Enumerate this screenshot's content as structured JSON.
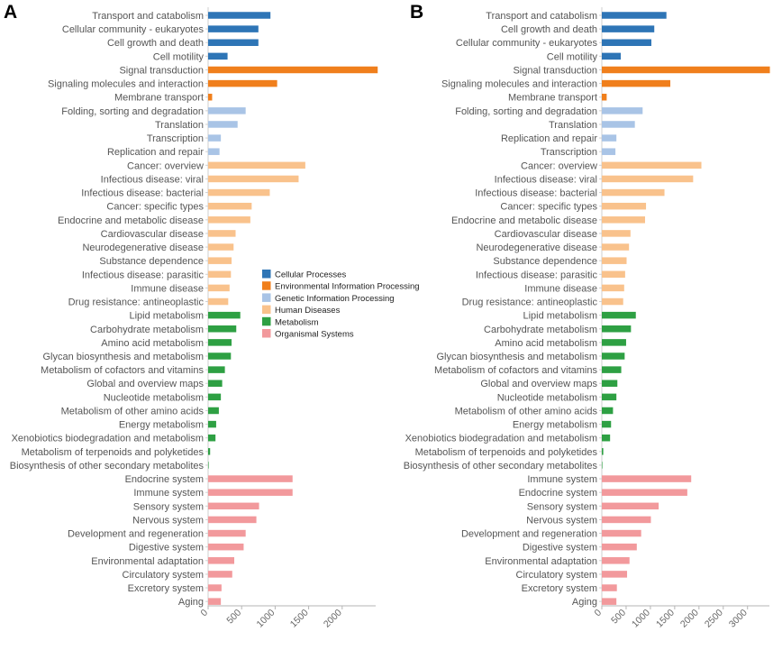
{
  "chart_data": [
    {
      "type": "bar",
      "orientation": "horizontal",
      "panel_label": "A",
      "xlim": [
        0,
        2500
      ],
      "x_ticks": [
        0,
        500,
        1000,
        1500,
        2000
      ],
      "categories": [
        "Transport and catabolism",
        "Cellular community - eukaryotes",
        "Cell growth and death",
        "Cell motility",
        "Signal transduction",
        "Signaling molecules and interaction",
        "Membrane transport",
        "Folding, sorting and degradation",
        "Translation",
        "Transcription",
        "Replication and repair",
        "Cancer: overview",
        "Infectious disease: viral",
        "Infectious disease: bacterial",
        "Cancer: specific types",
        "Endocrine and metabolic disease",
        "Cardiovascular disease",
        "Neurodegenerative disease",
        "Substance dependence",
        "Infectious disease: parasitic",
        "Immune disease",
        "Drug resistance: antineoplastic",
        "Lipid metabolism",
        "Carbohydrate metabolism",
        "Amino acid metabolism",
        "Glycan biosynthesis and metabolism",
        "Metabolism of cofactors and vitamins",
        "Global and overview maps",
        "Nucleotide metabolism",
        "Metabolism of other amino acids",
        "Energy metabolism",
        "Xenobiotics biodegradation and metabolism",
        "Metabolism of terpenoids and polyketides",
        "Biosynthesis of other secondary metabolites",
        "Endocrine system",
        "Immune system",
        "Sensory system",
        "Nervous system",
        "Development and regeneration",
        "Digestive system",
        "Environmental adaptation",
        "Circulatory system",
        "Excretory system",
        "Aging"
      ],
      "values": [
        930,
        750,
        750,
        290,
        2530,
        1030,
        60,
        560,
        440,
        190,
        170,
        1450,
        1350,
        920,
        650,
        630,
        410,
        380,
        350,
        340,
        320,
        300,
        480,
        420,
        350,
        340,
        250,
        210,
        190,
        160,
        120,
        110,
        30,
        5,
        1260,
        1260,
        760,
        720,
        560,
        530,
        390,
        360,
        200,
        190
      ],
      "groups": [
        "Cellular Processes",
        "Cellular Processes",
        "Cellular Processes",
        "Cellular Processes",
        "Environmental Information Processing",
        "Environmental Information Processing",
        "Environmental Information Processing",
        "Genetic Information Processing",
        "Genetic Information Processing",
        "Genetic Information Processing",
        "Genetic Information Processing",
        "Human Diseases",
        "Human Diseases",
        "Human Diseases",
        "Human Diseases",
        "Human Diseases",
        "Human Diseases",
        "Human Diseases",
        "Human Diseases",
        "Human Diseases",
        "Human Diseases",
        "Human Diseases",
        "Metabolism",
        "Metabolism",
        "Metabolism",
        "Metabolism",
        "Metabolism",
        "Metabolism",
        "Metabolism",
        "Metabolism",
        "Metabolism",
        "Metabolism",
        "Metabolism",
        "Metabolism",
        "Organismal Systems",
        "Organismal Systems",
        "Organismal Systems",
        "Organismal Systems",
        "Organismal Systems",
        "Organismal Systems",
        "Organismal Systems",
        "Organismal Systems",
        "Organismal Systems",
        "Organismal Systems"
      ]
    },
    {
      "type": "bar",
      "orientation": "horizontal",
      "panel_label": "B",
      "xlim": [
        0,
        3450
      ],
      "x_ticks": [
        0,
        500,
        1000,
        1500,
        2000,
        2500,
        3000
      ],
      "categories": [
        "Transport and catabolism",
        "Cell growth and death",
        "Cellular community - eukaryotes",
        "Cell motility",
        "Signal transduction",
        "Signaling molecules and interaction",
        "Membrane transport",
        "Folding, sorting and degradation",
        "Translation",
        "Replication and repair",
        "Transcription",
        "Cancer: overview",
        "Infectious disease: viral",
        "Infectious disease: bacterial",
        "Cancer: specific types",
        "Endocrine and metabolic disease",
        "Cardiovascular disease",
        "Neurodegenerative disease",
        "Substance dependence",
        "Infectious disease: parasitic",
        "Immune disease",
        "Drug resistance: antineoplastic",
        "Lipid metabolism",
        "Carbohydrate metabolism",
        "Amino acid metabolism",
        "Glycan biosynthesis and metabolism",
        "Metabolism of cofactors and vitamins",
        "Global and overview maps",
        "Nucleotide metabolism",
        "Metabolism of other amino acids",
        "Energy metabolism",
        "Xenobiotics biodegradation and metabolism",
        "Metabolism of terpenoids and polyketides",
        "Biosynthesis of other secondary metabolites",
        "Immune system",
        "Endocrine system",
        "Sensory system",
        "Nervous system",
        "Development and regeneration",
        "Digestive system",
        "Environmental adaptation",
        "Circulatory system",
        "Excretory system",
        "Aging"
      ],
      "values": [
        1330,
        1080,
        1020,
        390,
        3460,
        1410,
        100,
        840,
        680,
        300,
        280,
        2050,
        1880,
        1290,
        910,
        890,
        590,
        560,
        510,
        480,
        460,
        440,
        700,
        600,
        500,
        470,
        400,
        320,
        300,
        230,
        190,
        170,
        30,
        5,
        1840,
        1760,
        1170,
        1010,
        810,
        720,
        570,
        520,
        310,
        300
      ],
      "groups": [
        "Cellular Processes",
        "Cellular Processes",
        "Cellular Processes",
        "Cellular Processes",
        "Environmental Information Processing",
        "Environmental Information Processing",
        "Environmental Information Processing",
        "Genetic Information Processing",
        "Genetic Information Processing",
        "Genetic Information Processing",
        "Genetic Information Processing",
        "Human Diseases",
        "Human Diseases",
        "Human Diseases",
        "Human Diseases",
        "Human Diseases",
        "Human Diseases",
        "Human Diseases",
        "Human Diseases",
        "Human Diseases",
        "Human Diseases",
        "Human Diseases",
        "Metabolism",
        "Metabolism",
        "Metabolism",
        "Metabolism",
        "Metabolism",
        "Metabolism",
        "Metabolism",
        "Metabolism",
        "Metabolism",
        "Metabolism",
        "Metabolism",
        "Metabolism",
        "Organismal Systems",
        "Organismal Systems",
        "Organismal Systems",
        "Organismal Systems",
        "Organismal Systems",
        "Organismal Systems",
        "Organismal Systems",
        "Organismal Systems",
        "Organismal Systems",
        "Organismal Systems"
      ]
    }
  ],
  "legend": {
    "placement": "center",
    "entries": [
      {
        "name": "Cellular Processes",
        "color": "#2e75b6"
      },
      {
        "name": "Environmental Information Processing",
        "color": "#f07f1c"
      },
      {
        "name": "Genetic Information Processing",
        "color": "#a9c4e6"
      },
      {
        "name": "Human Diseases",
        "color": "#f9c28c"
      },
      {
        "name": "Metabolism",
        "color": "#2ea043"
      },
      {
        "name": "Organismal Systems",
        "color": "#f2999c"
      }
    ]
  }
}
